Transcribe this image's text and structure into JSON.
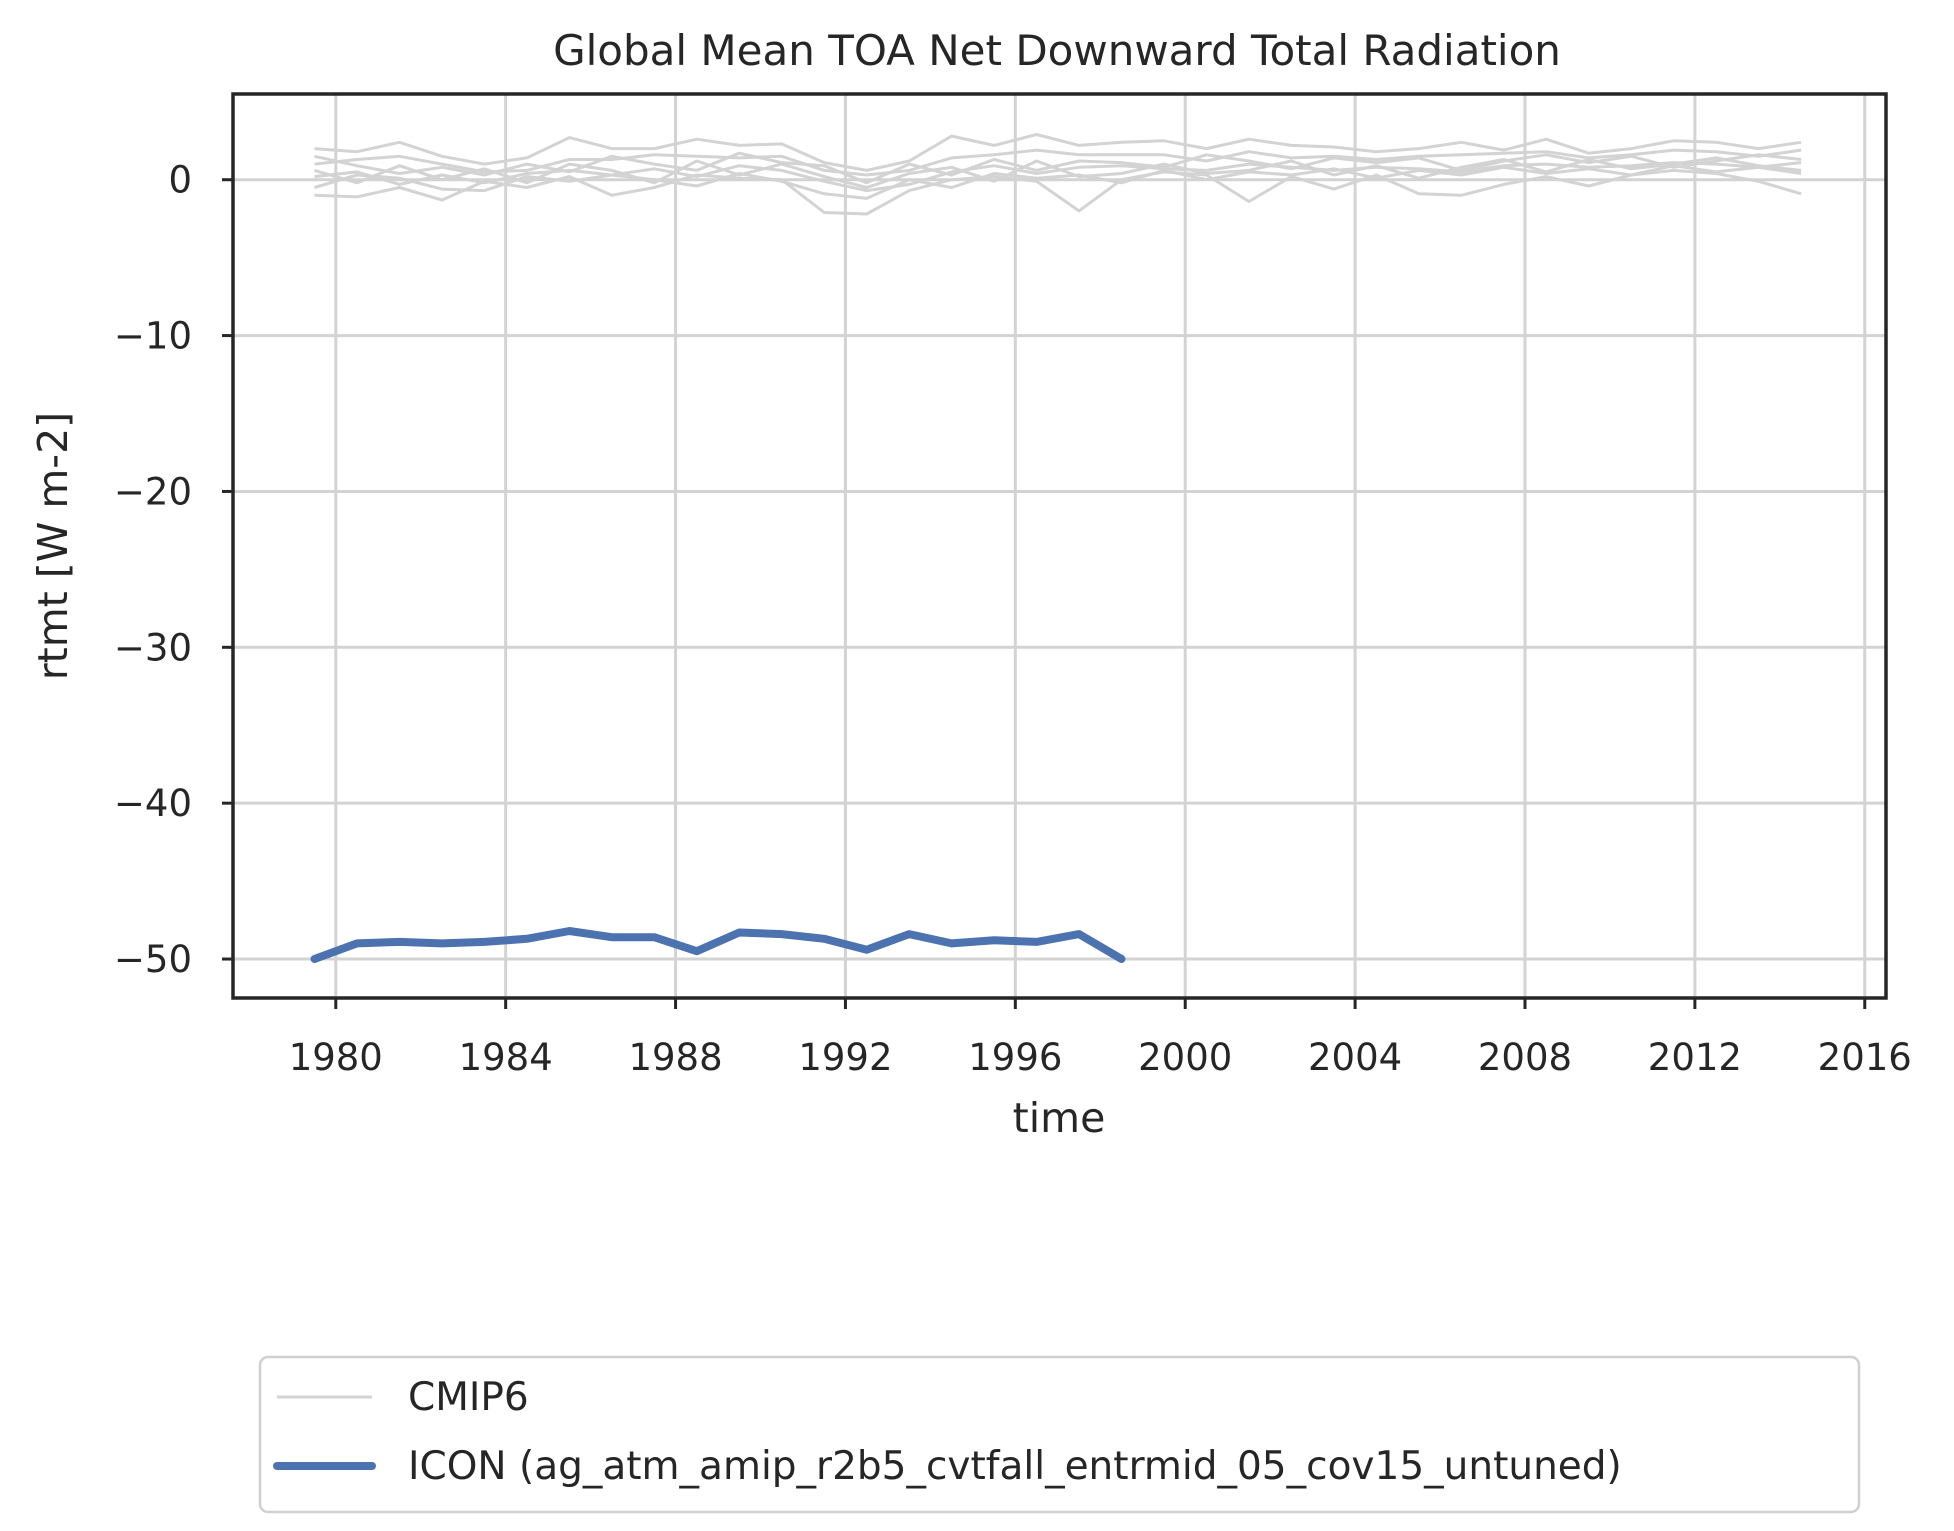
{
  "chart_data": {
    "type": "line",
    "title": "Global Mean TOA Net Downward Total Radiation",
    "xlabel": "time",
    "ylabel": "rtmt [W m-2]",
    "xlim": [
      1977.58,
      2016.5
    ],
    "ylim": [
      -52.5,
      5.5
    ],
    "x_ticks": [
      1980,
      1984,
      1988,
      1992,
      1996,
      2000,
      2004,
      2008,
      2012,
      2016
    ],
    "y_ticks": [
      0,
      -10,
      -20,
      -30,
      -40,
      -50
    ],
    "y_tick_labels": [
      "0",
      "−10",
      "−20",
      "−30",
      "−40",
      "−50"
    ],
    "grid": true,
    "legend": {
      "placement": "below-chart",
      "entries": [
        "CMIP6",
        "ICON (ag_atm_amip_r2b5_cvtfall_entrmid_05_cov15_untuned)"
      ]
    },
    "colors": {
      "cmip6": "#d3d3d3",
      "icon": "#4c72b0",
      "axes": "#262626"
    },
    "series": [
      {
        "name": "ICON (ag_atm_amip_r2b5_cvtfall_entrmid_05_cov15_untuned)",
        "x": [
          1979.5,
          1980.5,
          1981.5,
          1982.5,
          1983.5,
          1984.5,
          1985.5,
          1986.5,
          1987.5,
          1988.5,
          1989.5,
          1990.5,
          1991.5,
          1992.5,
          1993.5,
          1994.5,
          1995.5,
          1996.5,
          1997.5,
          1998.5
        ],
        "y": [
          -50.0,
          -49.0,
          -48.9,
          -49.0,
          -48.9,
          -48.7,
          -48.2,
          -48.6,
          -48.6,
          -49.5,
          -48.3,
          -48.4,
          -48.7,
          -49.4,
          -48.4,
          -49.0,
          -48.8,
          -48.9,
          -48.4,
          -50.0
        ]
      },
      {
        "name": "CMIP6",
        "x": [
          1979.5,
          1980.5,
          1981.5,
          1982.5,
          1983.5,
          1984.5,
          1985.5,
          1986.5,
          1987.5,
          1988.5,
          1989.5,
          1990.5,
          1991.5,
          1992.5,
          1993.5,
          1994.5,
          1995.5,
          1996.5,
          1997.5,
          1998.5,
          1999.5,
          2000.5,
          2001.5,
          2002.5,
          2003.5,
          2004.5,
          2005.5,
          2006.5,
          2007.5,
          2008.5,
          2009.5,
          2010.5,
          2011.5,
          2012.5,
          2013.5,
          2014.5
        ],
        "y": [
          1.0,
          1.3,
          1.5,
          1.0,
          0.5,
          0.6,
          1.3,
          1.3,
          1.6,
          1.5,
          1.4,
          1.5,
          0.6,
          0.3,
          0.6,
          1.4,
          1.6,
          1.9,
          1.6,
          1.6,
          1.6,
          1.2,
          1.8,
          1.4,
          1.5,
          1.3,
          1.5,
          1.6,
          1.7,
          1.8,
          1.4,
          1.6,
          1.9,
          1.8,
          1.5,
          1.9
        ]
      },
      {
        "name": "CMIP6",
        "x": [
          1979.5,
          1980.5,
          1981.5,
          1982.5,
          1983.5,
          1984.5,
          1985.5,
          1986.5,
          1987.5,
          1988.5,
          1989.5,
          1990.5,
          1991.5,
          1992.5,
          1993.5,
          1994.5,
          1995.5,
          1996.5,
          1997.5,
          1998.5,
          1999.5,
          2000.5,
          2001.5,
          2002.5,
          2003.5,
          2004.5,
          2005.5,
          2006.5,
          2007.5,
          2008.5,
          2009.5,
          2010.5,
          2011.5,
          2012.5,
          2013.5,
          2014.5
        ],
        "y": [
          0.2,
          0.5,
          -0.3,
          0.3,
          -0.2,
          0.4,
          0.6,
          0.3,
          0.7,
          0.2,
          0.9,
          0.6,
          -0.1,
          -0.7,
          -0.3,
          0.5,
          0.9,
          0.4,
          0.8,
          0.9,
          0.7,
          0.6,
          1.0,
          0.8,
          0.6,
          0.8,
          0.7,
          0.5,
          0.9,
          1.0,
          0.8,
          0.9,
          1.1,
          1.0,
          0.8,
          1.1
        ]
      },
      {
        "name": "CMIP6",
        "x": [
          1979.5,
          1980.5,
          1981.5,
          1982.5,
          1983.5,
          1984.5,
          1985.5,
          1986.5,
          1987.5,
          1988.5,
          1989.5,
          1990.5,
          1991.5,
          1992.5,
          1993.5,
          1994.5,
          1995.5,
          1996.5,
          1997.5,
          1998.5,
          1999.5,
          2000.5,
          2001.5,
          2002.5,
          2003.5,
          2004.5,
          2005.5,
          2006.5,
          2007.5,
          2008.5,
          2009.5,
          2010.5,
          2011.5,
          2012.5,
          2013.5,
          2014.5
        ],
        "y": [
          -1.0,
          -1.1,
          -0.5,
          -1.3,
          -0.1,
          -0.5,
          0.2,
          -1.0,
          -0.5,
          0.3,
          0.1,
          0.0,
          -2.1,
          -2.2,
          -0.7,
          0.0,
          0.2,
          -0.1,
          -2.0,
          0.0,
          0.5,
          0.3,
          -1.4,
          0.2,
          -0.6,
          0.3,
          -0.9,
          -1.0,
          -0.3,
          0.2,
          -0.4,
          0.3,
          0.6,
          0.4,
          -0.1,
          -0.9
        ]
      },
      {
        "name": "CMIP6",
        "x": [
          1979.5,
          1980.5,
          1981.5,
          1982.5,
          1983.5,
          1984.5,
          1985.5,
          1986.5,
          1987.5,
          1988.5,
          1989.5,
          1990.5,
          1991.5,
          1992.5,
          1993.5,
          1994.5,
          1995.5,
          1996.5,
          1997.5,
          1998.5,
          1999.5,
          2000.5,
          2001.5,
          2002.5,
          2003.5,
          2004.5,
          2005.5,
          2006.5,
          2007.5,
          2008.5,
          2009.5,
          2010.5,
          2011.5,
          2012.5,
          2013.5,
          2014.5
        ],
        "y": [
          2.0,
          1.8,
          2.4,
          1.5,
          1.0,
          1.4,
          2.7,
          2.0,
          2.0,
          2.6,
          2.2,
          2.3,
          1.1,
          0.6,
          1.2,
          2.8,
          2.2,
          2.9,
          2.2,
          2.4,
          2.5,
          2.0,
          2.6,
          2.2,
          2.1,
          1.8,
          2.0,
          2.4,
          1.9,
          2.6,
          1.7,
          2.0,
          2.5,
          2.4,
          2.0,
          2.4
        ]
      },
      {
        "name": "CMIP6",
        "x": [
          1979.5,
          1980.5,
          1981.5,
          1982.5,
          1983.5,
          1984.5,
          1985.5,
          1986.5,
          1987.5,
          1988.5,
          1989.5,
          1990.5,
          1991.5,
          1992.5,
          1993.5,
          1994.5,
          1995.5,
          1996.5,
          1997.5,
          1998.5,
          1999.5,
          2000.5,
          2001.5,
          2002.5,
          2003.5,
          2004.5,
          2005.5,
          2006.5,
          2007.5,
          2008.5,
          2009.5,
          2010.5,
          2011.5,
          2012.5,
          2013.5,
          2014.5
        ],
        "y": [
          0.6,
          -0.2,
          0.9,
          0.0,
          0.7,
          -0.2,
          1.0,
          0.6,
          -0.2,
          1.2,
          0.3,
          1.0,
          0.2,
          -0.5,
          0.4,
          0.8,
          -0.1,
          1.2,
          0.2,
          0.4,
          1.0,
          0.4,
          0.6,
          1.2,
          0.3,
          0.9,
          0.1,
          0.8,
          1.3,
          0.5,
          1.3,
          0.7,
          1.0,
          1.4,
          0.9,
          0.6
        ]
      },
      {
        "name": "CMIP6",
        "x": [
          1979.5,
          1980.5,
          1981.5,
          1982.5,
          1983.5,
          1984.5,
          1985.5,
          1986.5,
          1987.5,
          1988.5,
          1989.5,
          1990.5,
          1991.5,
          1992.5,
          1993.5,
          1994.5,
          1995.5,
          1996.5,
          1997.5,
          1998.5,
          1999.5,
          2000.5,
          2001.5,
          2002.5,
          2003.5,
          2004.5,
          2005.5,
          2006.5,
          2007.5,
          2008.5,
          2009.5,
          2010.5,
          2011.5,
          2012.5,
          2013.5,
          2014.5
        ],
        "y": [
          1.5,
          0.9,
          0.4,
          0.8,
          0.3,
          1.0,
          0.5,
          1.5,
          1.0,
          0.6,
          1.7,
          1.1,
          0.9,
          -0.2,
          1.0,
          0.3,
          1.3,
          0.6,
          1.2,
          1.1,
          0.8,
          1.6,
          1.2,
          0.7,
          1.4,
          1.1,
          1.4,
          0.6,
          1.2,
          1.6,
          1.1,
          1.5,
          0.8,
          1.2,
          1.6,
          1.3
        ]
      },
      {
        "name": "CMIP6",
        "x": [
          1979.5,
          1980.5,
          1981.5,
          1982.5,
          1983.5,
          1984.5,
          1985.5,
          1986.5,
          1987.5,
          1988.5,
          1989.5,
          1990.5,
          1991.5,
          1992.5,
          1993.5,
          1994.5,
          1995.5,
          1996.5,
          1997.5,
          1998.5,
          1999.5,
          2000.5,
          2001.5,
          2002.5,
          2003.5,
          2004.5,
          2005.5,
          2006.5,
          2007.5,
          2008.5,
          2009.5,
          2010.5,
          2011.5,
          2012.5,
          2013.5,
          2014.5
        ],
        "y": [
          -0.5,
          0.3,
          0.1,
          -0.6,
          -0.7,
          0.2,
          -0.1,
          0.3,
          0.0,
          -0.4,
          0.4,
          -0.1,
          -0.9,
          -1.2,
          0.0,
          -0.5,
          0.4,
          0.1,
          0.3,
          -0.2,
          0.6,
          0.0,
          0.5,
          0.3,
          0.7,
          0.1,
          0.6,
          0.3,
          0.8,
          0.4,
          0.7,
          0.3,
          0.9,
          0.5,
          0.8,
          0.4
        ]
      }
    ]
  }
}
